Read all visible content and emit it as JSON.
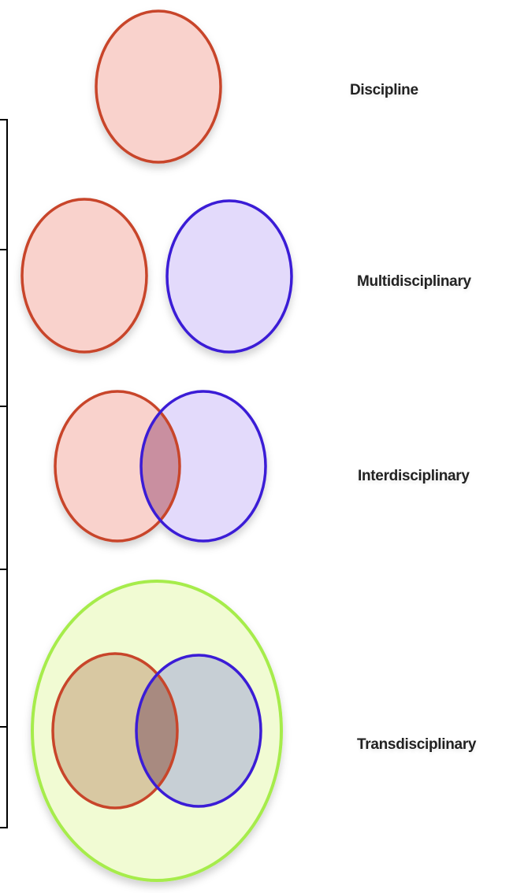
{
  "rows": [
    {
      "label": "Discipline"
    },
    {
      "label": "Multidisciplinary"
    },
    {
      "label": "Interdisciplinary"
    },
    {
      "label": "Transdisciplinary"
    }
  ],
  "colors": {
    "discipline_a_stroke": "#c8442a",
    "discipline_a_fill": "#f9d2cc",
    "discipline_b_stroke": "#3a1fd6",
    "discipline_b_fill": "#e3dafb",
    "overlap_fill": "#c98fa0",
    "transdisciplinary_stroke": "#a6ec4c",
    "transdisciplinary_fill": "#f1fbd3",
    "trans_a_fill": "#d8c8a2",
    "trans_b_fill": "#c7cfd5",
    "trans_overlap_fill": "#a88a80"
  }
}
